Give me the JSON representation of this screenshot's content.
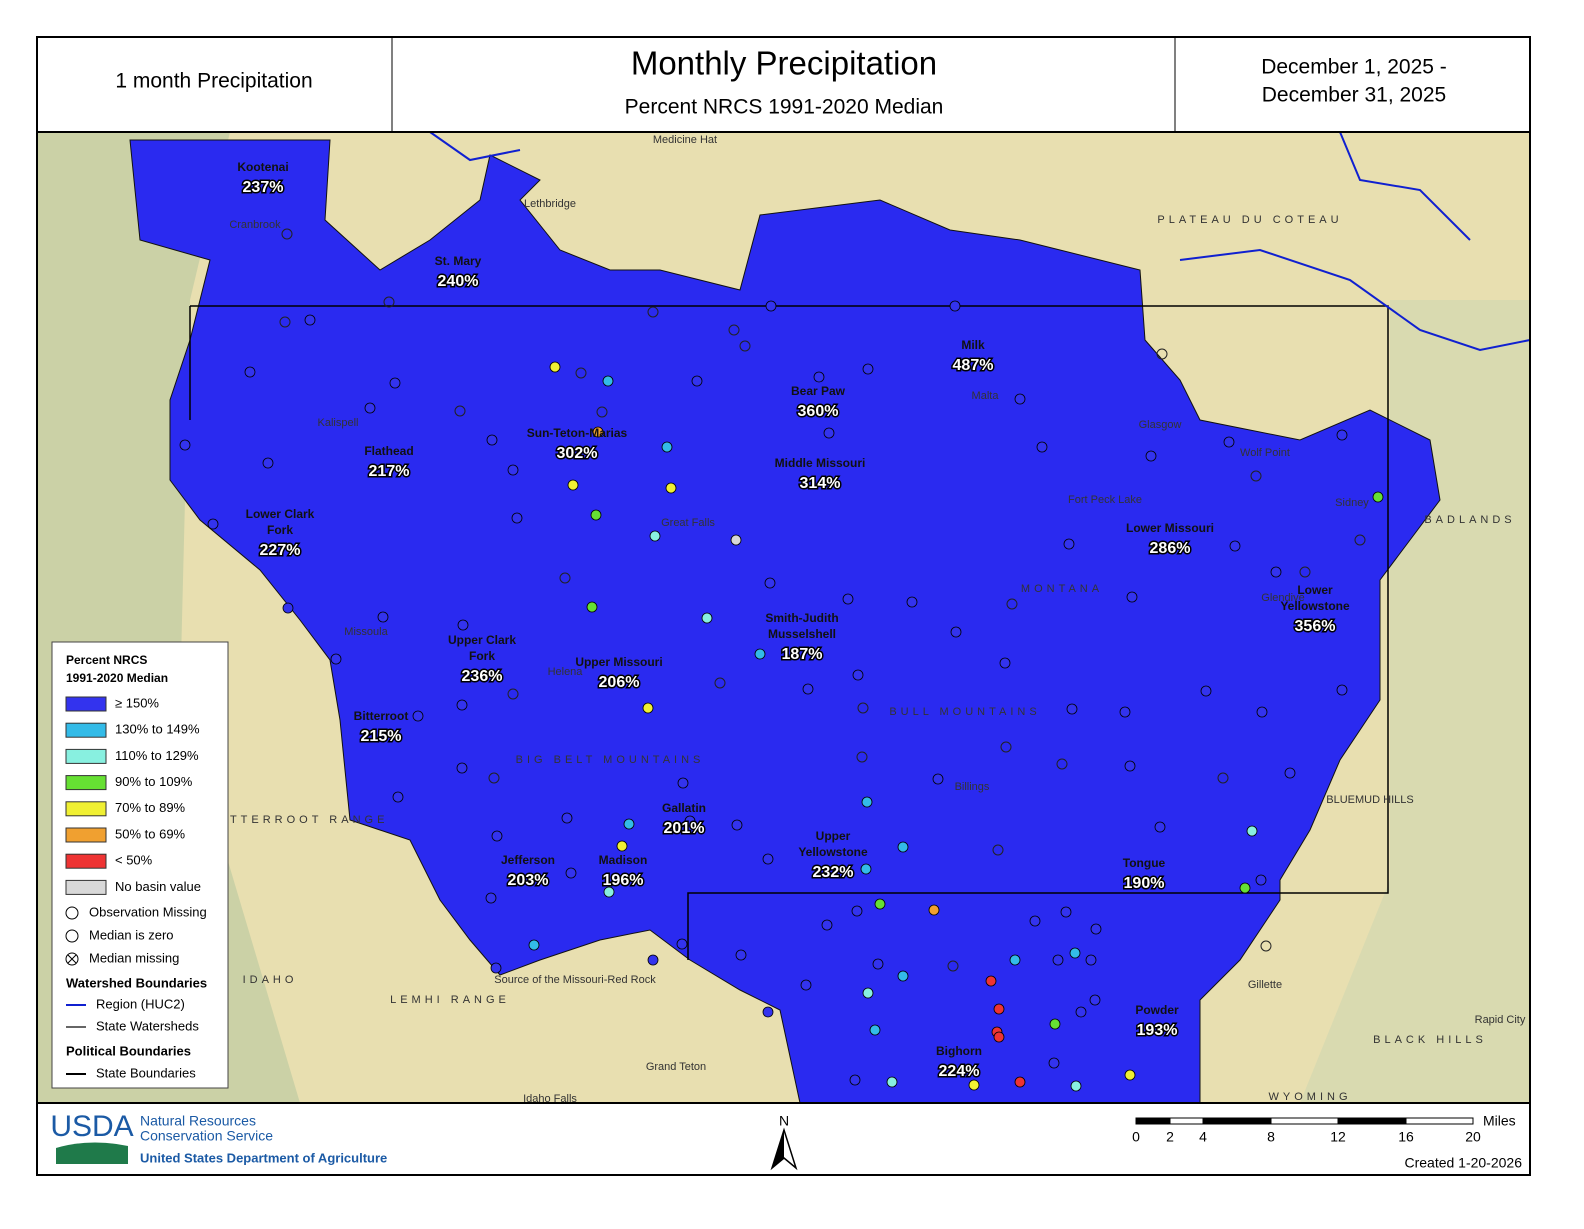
{
  "header": {
    "left": "1 month Precipitation",
    "title": "Monthly Precipitation",
    "subtitle": "Percent NRCS 1991-2020 Median",
    "dates": [
      "December 1, 2025 -",
      "December 31, 2025"
    ]
  },
  "basins": [
    {
      "name": [
        "Kootenai"
      ],
      "value": "237%"
    },
    {
      "name": [
        "St. Mary"
      ],
      "value": "240%"
    },
    {
      "name": [
        "Milk"
      ],
      "value": "487%"
    },
    {
      "name": [
        "Bear Paw"
      ],
      "value": "360%"
    },
    {
      "name": [
        "Sun-Teton-Marias"
      ],
      "value": "302%"
    },
    {
      "name": [
        "Flathead"
      ],
      "value": "217%"
    },
    {
      "name": [
        "Middle Missouri"
      ],
      "value": "314%"
    },
    {
      "name": [
        "Lower Clark",
        "Fork"
      ],
      "value": "227%"
    },
    {
      "name": [
        "Lower Missouri"
      ],
      "value": "286%"
    },
    {
      "name": [
        "Lower",
        "Yellowstone"
      ],
      "value": "356%"
    },
    {
      "name": [
        "Smith-Judith",
        "Musselshell"
      ],
      "value": "187%"
    },
    {
      "name": [
        "Upper Clark",
        "Fork"
      ],
      "value": "236%"
    },
    {
      "name": [
        "Upper Missouri"
      ],
      "value": "206%"
    },
    {
      "name": [
        "Bitterroot"
      ],
      "value": "215%"
    },
    {
      "name": [
        "Gallatin"
      ],
      "value": "201%"
    },
    {
      "name": [
        "Upper",
        "Yellowstone"
      ],
      "value": "232%"
    },
    {
      "name": [
        "Jefferson"
      ],
      "value": "203%"
    },
    {
      "name": [
        "Madison"
      ],
      "value": "196%"
    },
    {
      "name": [
        "Tongue"
      ],
      "value": "190%"
    },
    {
      "name": [
        "Powder"
      ],
      "value": "193%"
    },
    {
      "name": [
        "Bighorn"
      ],
      "value": "224%"
    }
  ],
  "places": [
    "Medicine Hat",
    "Lethbridge",
    "Cranbrook",
    "Kalispell",
    "Missoula",
    "Helena",
    "Great Falls",
    "Malta",
    "Glasgow",
    "Wolf Point",
    "Sidney",
    "Glendive",
    "Billings",
    "Gillette",
    "Rapid City",
    "Idaho Falls",
    "Grand Teton",
    "Source of the Missouri-Red Rock",
    "Fort Peck Lake",
    "MONTANA",
    "IDAHO",
    "WYOMING",
    "PLATEAU DU COTEAU",
    "BADLANDS",
    "BITTERROOT RANGE",
    "BIG BELT MOUNTAINS",
    "BULL MOUNTAINS",
    "LEMHI RANGE",
    "BLUEMUD HILLS",
    "BLACK HILLS"
  ],
  "legend": {
    "title": [
      "Percent NRCS",
      "1991-2020 Median"
    ],
    "classes": [
      {
        "label": "≥ 150%",
        "color": "#3333ee"
      },
      {
        "label": "130% to 149%",
        "color": "#33bbe8"
      },
      {
        "label": "110% to 129%",
        "color": "#88f0e0"
      },
      {
        "label": "90% to 109%",
        "color": "#66e033"
      },
      {
        "label": "70% to 89%",
        "color": "#f0f033"
      },
      {
        "label": "50% to 69%",
        "color": "#f0a030"
      },
      {
        "label": "< 50%",
        "color": "#ee3333"
      },
      {
        "label": "No basin value",
        "color": "#d8d8d8"
      }
    ],
    "symbols": [
      "Observation Missing",
      "Median is zero",
      "Median missing"
    ],
    "watershed_title": "Watershed Boundaries",
    "watershed": [
      {
        "label": "Region (HUC2)",
        "color": "#1020d0"
      },
      {
        "label": "State Watersheds",
        "color": "#666666"
      }
    ],
    "political_title": "Political Boundaries",
    "political": [
      {
        "label": "State Boundaries",
        "color": "#000000"
      }
    ]
  },
  "footer": {
    "logo": "USDA",
    "agency": [
      "Natural Resources",
      "Conservation Service"
    ],
    "department": "United States Department of Agriculture",
    "north": "N",
    "scale_ticks": [
      "0",
      "2",
      "4",
      "8",
      "12",
      "16",
      "20"
    ],
    "scale_unit": "Miles",
    "created": "Created 1-20-2026"
  }
}
